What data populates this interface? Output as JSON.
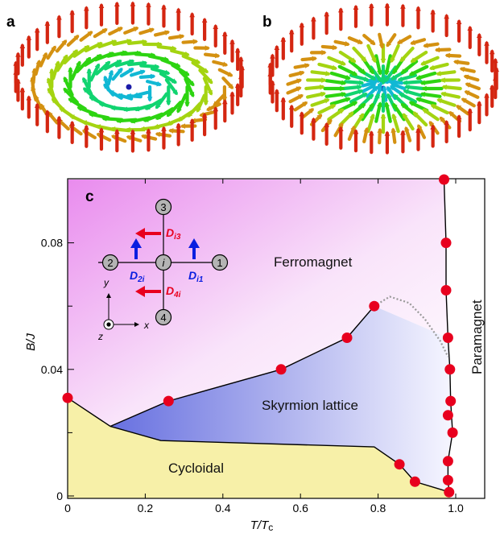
{
  "panels": {
    "a": {
      "letter": "a"
    },
    "b": {
      "letter": "b"
    },
    "c": {
      "letter": "c"
    }
  },
  "chart_data": {
    "type": "scatter",
    "xlabel": "T/Tc",
    "ylabel": "B/J",
    "xlim": [
      0,
      1.0
    ],
    "ylim": [
      0,
      0.1
    ],
    "xticks": [
      "0",
      "0.2",
      "0.4",
      "0.6",
      "0.8",
      "1.0"
    ],
    "yticks": [
      "0",
      "0.04",
      "0.08"
    ],
    "regions": [
      "Ferromagnet",
      "Skyrmion lattice",
      "Cycloidal",
      "Paramagnet"
    ],
    "series": [
      {
        "x": [
          0,
          0.26,
          0.55,
          0.72,
          0.79,
          0.855,
          0.895,
          0.97,
          0.975,
          0.975,
          0.98,
          0.985,
          0.987,
          0.992,
          0.98,
          0.98,
          0.983,
          0.98
        ],
        "y": [
          0.031,
          0.03,
          0.04,
          0.05,
          0.06,
          0.01,
          0.0045,
          0.1,
          0.08,
          0.065,
          0.05,
          0.04,
          0.03,
          0.02,
          0.011,
          0.005,
          0.0012,
          0.0255
        ]
      }
    ],
    "boundaries": {
      "skyrmion_upper": {
        "x": [
          0.11,
          0.26,
          0.55,
          0.72,
          0.79
        ],
        "y": [
          0.022,
          0.03,
          0.04,
          0.05,
          0.06
        ]
      },
      "cycloidal_upper": {
        "x": [
          0,
          0.11,
          0.24,
          0.79,
          0.855,
          0.895,
          0.985
        ],
        "y": [
          0.031,
          0.022,
          0.0175,
          0.0155,
          0.01,
          0.0045,
          0.0012
        ]
      },
      "paramagnet": {
        "x": [
          0.97,
          0.975,
          0.975,
          0.98,
          0.985,
          0.987,
          0.992,
          0.98,
          0.98,
          0.983
        ],
        "y": [
          0.1,
          0.08,
          0.065,
          0.05,
          0.04,
          0.03,
          0.02,
          0.011,
          0.005,
          0.0012
        ]
      },
      "dotted": {
        "x": [
          0.79,
          0.83,
          0.88,
          0.92,
          0.96,
          0.98
        ],
        "y": [
          0.06,
          0.063,
          0.061,
          0.056,
          0.049,
          0.044
        ]
      }
    },
    "marker_color": "#e8001e"
  },
  "inset": {
    "sites": {
      "s1": "1",
      "s2": "2",
      "s3": "3",
      "s4": "4",
      "center": "i"
    },
    "dmi": {
      "d3": {
        "main": "D",
        "sub": "i3"
      },
      "d1": {
        "main": "D",
        "sub": "i1"
      },
      "d2": {
        "main": "D",
        "sub": "2i"
      },
      "d4": {
        "main": "D",
        "sub": "4i"
      }
    },
    "axes": {
      "y": "y",
      "x": "x",
      "z": "z"
    }
  },
  "colors": {
    "red": "#e8001e",
    "blue": "#0a1ee0",
    "cycloidal": "#f7f0a8",
    "ferro_top": "#e98bee"
  }
}
